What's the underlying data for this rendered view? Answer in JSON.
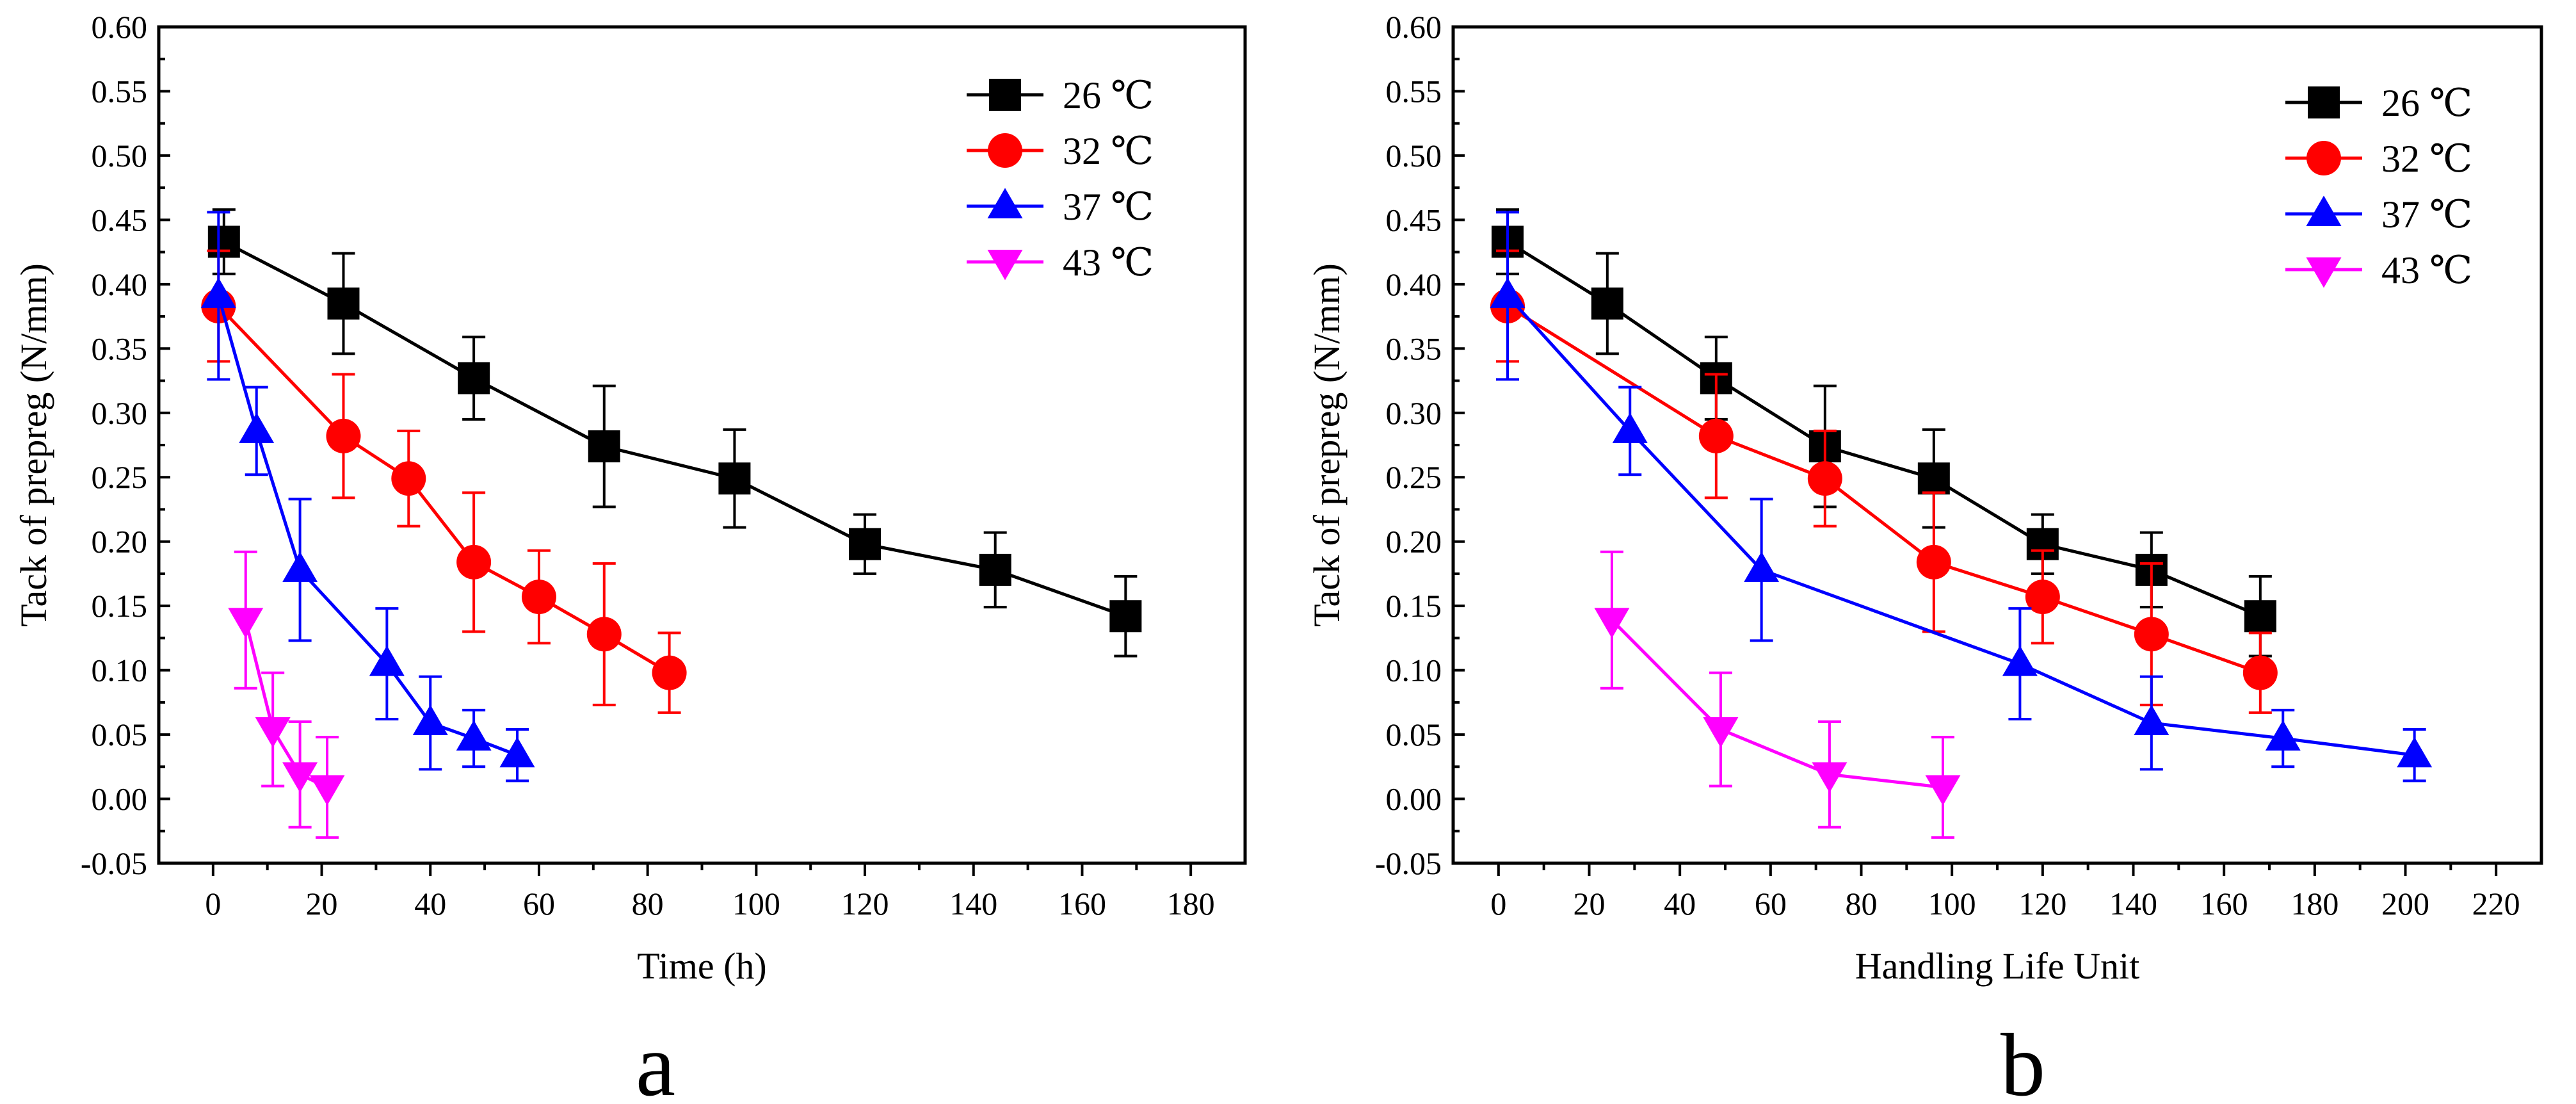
{
  "panels": [
    {
      "id": "a",
      "panel_label": "a",
      "xlabel": "Time (h)",
      "ylabel": "Tack of prepreg (N/mm)"
    },
    {
      "id": "b",
      "panel_label": "b",
      "xlabel": "Handling Life Unit",
      "ylabel": "Tack of prepreg (N/mm)"
    }
  ],
  "chart_data": [
    {
      "type": "line",
      "panel": "a",
      "title": "",
      "xlabel": "Time (h)",
      "ylabel": "Tack of prepreg (N/mm)",
      "xlim": [
        -10,
        190
      ],
      "ylim": [
        -0.05,
        0.6
      ],
      "xticks": [
        0,
        20,
        40,
        60,
        80,
        100,
        120,
        140,
        160,
        180
      ],
      "yticks": [
        -0.05,
        0.0,
        0.05,
        0.1,
        0.15,
        0.2,
        0.25,
        0.3,
        0.35,
        0.4,
        0.45,
        0.5,
        0.55,
        0.6
      ],
      "legend_position": "top-right",
      "series": [
        {
          "name": "26 ℃",
          "color": "#000000",
          "marker": "square",
          "x": [
            2,
            24,
            48,
            72,
            96,
            120,
            144,
            168
          ],
          "y": [
            0.433,
            0.385,
            0.327,
            0.274,
            0.249,
            0.198,
            0.178,
            0.142
          ],
          "err": [
            0.025,
            0.039,
            0.032,
            0.047,
            0.038,
            0.023,
            0.029,
            0.031
          ]
        },
        {
          "name": "32 ℃",
          "color": "#ff0000",
          "marker": "circle",
          "x": [
            1,
            24,
            36,
            48,
            60,
            72,
            84
          ],
          "y": [
            0.383,
            0.282,
            0.249,
            0.184,
            0.157,
            0.128,
            0.098
          ],
          "err": [
            0.043,
            0.048,
            0.037,
            0.054,
            0.036,
            0.055,
            0.031
          ]
        },
        {
          "name": "37 ℃",
          "color": "#0000ff",
          "marker": "triangle-up",
          "x": [
            1,
            8,
            16,
            32,
            40,
            48,
            56
          ],
          "y": [
            0.391,
            0.286,
            0.178,
            0.105,
            0.059,
            0.047,
            0.034
          ],
          "err": [
            0.065,
            0.034,
            0.055,
            0.043,
            0.036,
            0.022,
            0.02
          ]
        },
        {
          "name": "43 ℃",
          "color": "#ff00ff",
          "marker": "triangle-down",
          "x": [
            6,
            11,
            16,
            21
          ],
          "y": [
            0.139,
            0.054,
            0.019,
            0.009
          ],
          "err": [
            0.053,
            0.044,
            0.041,
            0.039
          ]
        }
      ]
    },
    {
      "type": "line",
      "panel": "b",
      "title": "",
      "xlabel": "Handling Life Unit",
      "ylabel": "Tack of prepreg (N/mm)",
      "xlim": [
        -10,
        230
      ],
      "ylim": [
        -0.05,
        0.6
      ],
      "xticks": [
        0,
        20,
        40,
        60,
        80,
        100,
        120,
        140,
        160,
        180,
        200,
        220
      ],
      "yticks": [
        -0.05,
        0.0,
        0.05,
        0.1,
        0.15,
        0.2,
        0.25,
        0.3,
        0.35,
        0.4,
        0.45,
        0.5,
        0.55,
        0.6
      ],
      "legend_position": "top-right",
      "series": [
        {
          "name": "26 ℃",
          "color": "#000000",
          "marker": "square",
          "x": [
            2,
            24,
            48,
            72,
            96,
            120,
            144,
            168
          ],
          "y": [
            0.433,
            0.385,
            0.327,
            0.274,
            0.249,
            0.198,
            0.178,
            0.142
          ],
          "err": [
            0.025,
            0.039,
            0.032,
            0.047,
            0.038,
            0.023,
            0.029,
            0.031
          ]
        },
        {
          "name": "32 ℃",
          "color": "#ff0000",
          "marker": "circle",
          "x": [
            2,
            48,
            72,
            96,
            120,
            144,
            168
          ],
          "y": [
            0.383,
            0.282,
            0.249,
            0.184,
            0.157,
            0.128,
            0.098
          ],
          "err": [
            0.043,
            0.048,
            0.037,
            0.054,
            0.036,
            0.055,
            0.031
          ]
        },
        {
          "name": "37 ℃",
          "color": "#0000ff",
          "marker": "triangle-up",
          "x": [
            2,
            29,
            58,
            115,
            144,
            173,
            202
          ],
          "y": [
            0.391,
            0.286,
            0.178,
            0.105,
            0.059,
            0.047,
            0.034
          ],
          "err": [
            0.065,
            0.034,
            0.055,
            0.043,
            0.036,
            0.022,
            0.02
          ]
        },
        {
          "name": "43 ℃",
          "color": "#ff00ff",
          "marker": "triangle-down",
          "x": [
            25,
            49,
            73,
            98
          ],
          "y": [
            0.139,
            0.054,
            0.019,
            0.009
          ],
          "err": [
            0.053,
            0.044,
            0.041,
            0.039
          ]
        }
      ]
    }
  ]
}
